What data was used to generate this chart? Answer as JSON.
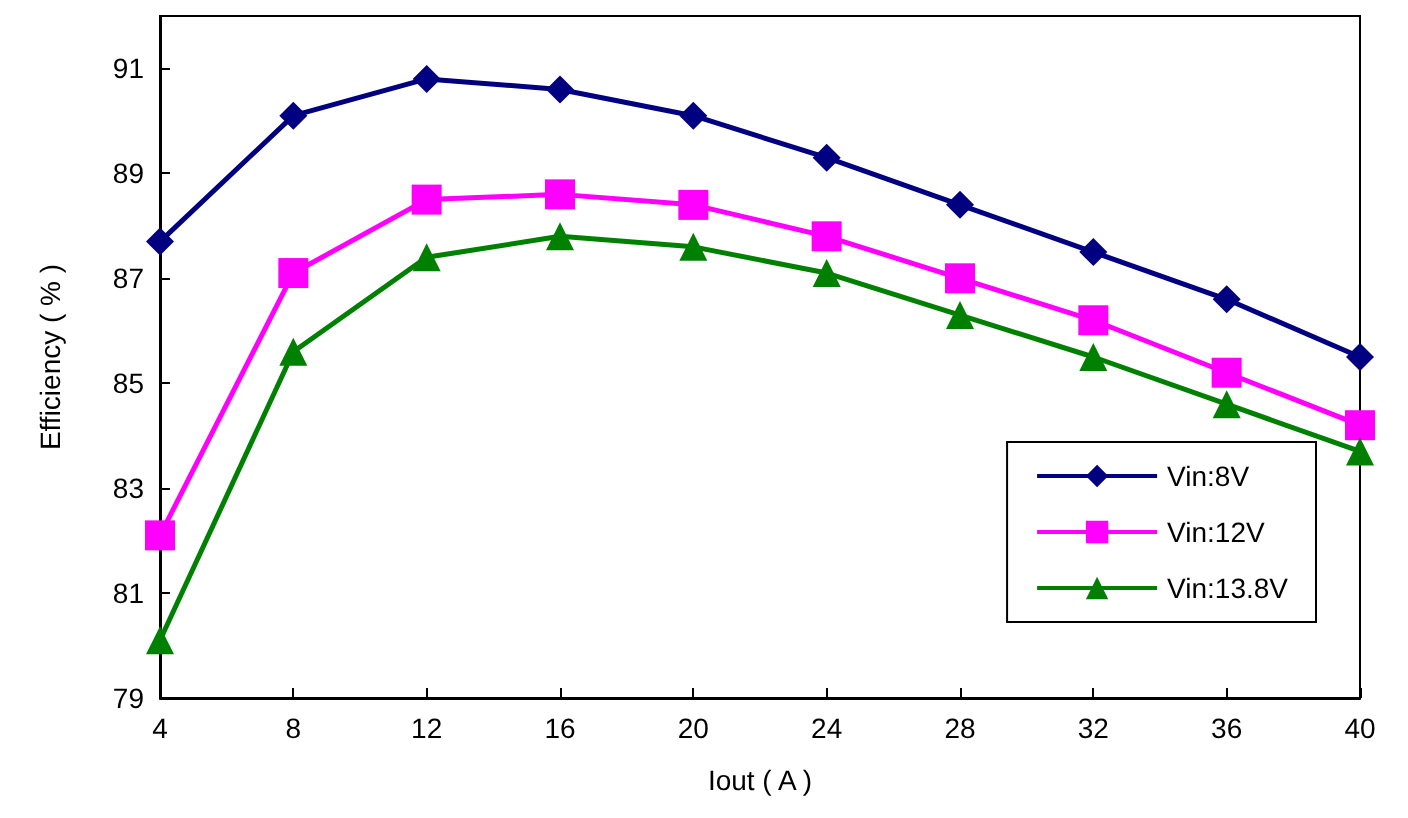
{
  "chart_data": {
    "type": "line",
    "xlabel": "Iout ( A )",
    "ylabel": "Efficiency ( % )",
    "x": [
      4,
      8,
      12,
      16,
      20,
      24,
      28,
      32,
      36,
      40
    ],
    "series": [
      {
        "name": "Vin:8V",
        "color": "#000080",
        "marker": "diamond",
        "values": [
          87.7,
          90.1,
          90.8,
          90.6,
          90.1,
          89.3,
          88.4,
          87.5,
          86.6,
          85.5
        ]
      },
      {
        "name": "Vin:12V",
        "color": "#ff00ff",
        "marker": "square",
        "values": [
          82.1,
          87.1,
          88.5,
          88.6,
          88.4,
          87.8,
          87.0,
          86.2,
          85.2,
          84.2
        ]
      },
      {
        "name": "Vin:13.8V",
        "color": "#008000",
        "marker": "triangle",
        "values": [
          80.1,
          85.6,
          87.4,
          87.8,
          87.6,
          87.1,
          86.3,
          85.5,
          84.6,
          83.7
        ]
      }
    ],
    "xlim": [
      4,
      40
    ],
    "xticks": [
      4,
      8,
      12,
      16,
      20,
      24,
      28,
      32,
      36,
      40
    ],
    "ylim": [
      79,
      92
    ],
    "yticks": [
      79,
      81,
      83,
      85,
      87,
      89,
      91
    ],
    "grid": false,
    "legend": "bottom right",
    "line_style": "solid"
  }
}
